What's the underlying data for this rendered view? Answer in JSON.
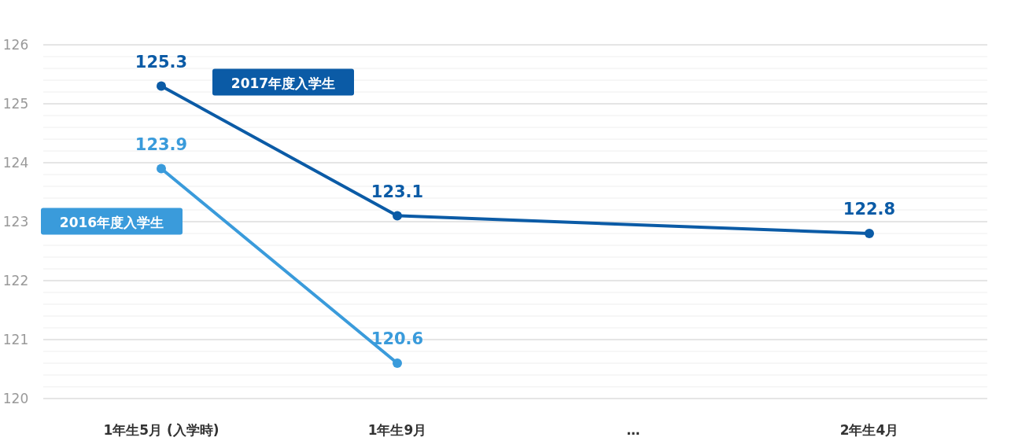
{
  "chart_data": {
    "type": "line",
    "categories": [
      "1年生5月 (入学時)",
      "1年生9月",
      "…",
      "2年生4月"
    ],
    "series": [
      {
        "name": "2017年度入学生",
        "color": "#0b5ba6",
        "values": [
          125.3,
          123.1,
          null,
          122.8
        ]
      },
      {
        "name": "2016年度入学生",
        "color": "#3a9bdb",
        "values": [
          123.9,
          120.6,
          null,
          null
        ]
      }
    ],
    "ylim": [
      120,
      126
    ],
    "yticks": [
      120,
      {
        "value": 120.2,
        "label": null
      },
      {
        "value": 120.4,
        "label": null
      },
      {
        "value": 120.6,
        "label": null
      },
      {
        "value": 120.8,
        "label": null
      },
      121,
      {
        "value": 121.2,
        "label": null
      },
      {
        "value": 121.4,
        "label": null
      },
      {
        "value": 121.6,
        "label": null
      },
      {
        "value": 121.8,
        "label": null
      },
      122,
      {
        "value": 122.2,
        "label": null
      },
      {
        "value": 122.4,
        "label": null
      },
      {
        "value": 122.6,
        "label": null
      },
      {
        "value": 122.8,
        "label": null
      },
      123,
      {
        "value": 123.2,
        "label": null
      },
      {
        "value": 123.4,
        "label": null
      },
      {
        "value": 123.6,
        "label": null
      },
      {
        "value": 123.8,
        "label": null
      },
      124,
      {
        "value": 124.2,
        "label": null
      },
      {
        "value": 124.4,
        "label": null
      },
      {
        "value": 124.6,
        "label": null
      },
      {
        "value": 124.8,
        "label": null
      },
      125,
      {
        "value": 125.2,
        "label": null
      },
      {
        "value": 125.4,
        "label": null
      },
      {
        "value": 125.6,
        "label": null
      },
      {
        "value": 125.8,
        "label": null
      },
      126
    ],
    "grid": "y",
    "marker": "circle",
    "data_labels": true
  }
}
